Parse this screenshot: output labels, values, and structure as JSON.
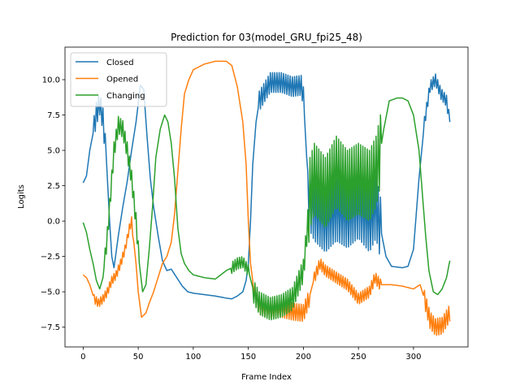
{
  "chart_data": {
    "type": "line",
    "title": "Prediction for 03(model_GRU_fpi25_48)",
    "xlabel": "Frame Index",
    "ylabel": "Logits",
    "xlim": [
      -16.5,
      349.5
    ],
    "ylim": [
      -8.9,
      12.3
    ],
    "xticks": [
      0,
      50,
      100,
      150,
      200,
      250,
      300
    ],
    "yticks": [
      -7.5,
      -5.0,
      -2.5,
      0.0,
      2.5,
      5.0,
      7.5,
      10.0
    ],
    "ytick_labels": [
      "−7.5",
      "−5.0",
      "−2.5",
      "0.0",
      "2.5",
      "5.0",
      "7.5",
      "10.0"
    ],
    "grid": false,
    "legend_position": "upper-left",
    "series": [
      {
        "name": "Closed",
        "color": "#1f77b4",
        "oscillation": [
          {
            "from": 10,
            "to": 20,
            "amp": 0.8
          },
          {
            "from": 160,
            "to": 200,
            "amp": 0.7
          },
          {
            "from": 205,
            "to": 270,
            "amp": 2.2
          },
          {
            "from": 310,
            "to": 332,
            "amp": 0.4
          }
        ],
        "points": [
          [
            0,
            2.7
          ],
          [
            3,
            3.2
          ],
          [
            6,
            5.0
          ],
          [
            9,
            6.2
          ],
          [
            12,
            7.6
          ],
          [
            15,
            8.3
          ],
          [
            18,
            7.2
          ],
          [
            21,
            4.5
          ],
          [
            24,
            0.0
          ],
          [
            26,
            -2.5
          ],
          [
            28,
            -3.3
          ],
          [
            32,
            -1.0
          ],
          [
            36,
            1.0
          ],
          [
            40,
            2.8
          ],
          [
            44,
            5.0
          ],
          [
            48,
            7.0
          ],
          [
            52,
            9.6
          ],
          [
            55,
            9.3
          ],
          [
            58,
            6.0
          ],
          [
            61,
            3.0
          ],
          [
            64,
            1.0
          ],
          [
            68,
            -1.0
          ],
          [
            72,
            -2.8
          ],
          [
            76,
            -3.5
          ],
          [
            80,
            -3.4
          ],
          [
            85,
            -4.0
          ],
          [
            90,
            -4.6
          ],
          [
            95,
            -5.0
          ],
          [
            100,
            -5.1
          ],
          [
            110,
            -5.2
          ],
          [
            120,
            -5.3
          ],
          [
            130,
            -5.45
          ],
          [
            135,
            -5.5
          ],
          [
            140,
            -5.3
          ],
          [
            145,
            -5.0
          ],
          [
            148,
            -4.2
          ],
          [
            150,
            -3.0
          ],
          [
            152,
            0.0
          ],
          [
            154,
            4.0
          ],
          [
            157,
            7.0
          ],
          [
            160,
            8.5
          ],
          [
            170,
            9.8
          ],
          [
            180,
            9.8
          ],
          [
            190,
            9.5
          ],
          [
            198,
            9.6
          ],
          [
            200,
            8.8
          ],
          [
            203,
            4.5
          ],
          [
            206,
            1.5
          ],
          [
            210,
            0.8
          ],
          [
            220,
            0.0
          ],
          [
            230,
            0.8
          ],
          [
            240,
            0.3
          ],
          [
            250,
            1.0
          ],
          [
            260,
            0.0
          ],
          [
            266,
            1.0
          ],
          [
            270,
            -0.5
          ],
          [
            275,
            -2.5
          ],
          [
            280,
            -3.2
          ],
          [
            290,
            -3.3
          ],
          [
            295,
            -3.2
          ],
          [
            300,
            -2.0
          ],
          [
            305,
            3.0
          ],
          [
            310,
            7.0
          ],
          [
            315,
            9.5
          ],
          [
            320,
            10.0
          ],
          [
            325,
            9.0
          ],
          [
            330,
            8.5
          ],
          [
            333,
            7.0
          ]
        ]
      },
      {
        "name": "Opened",
        "color": "#ff7f0e",
        "oscillation": [
          {
            "from": 10,
            "to": 45,
            "amp": 0.3
          },
          {
            "from": 155,
            "to": 205,
            "amp": 0.6
          },
          {
            "from": 210,
            "to": 270,
            "amp": 0.4
          },
          {
            "from": 310,
            "to": 333,
            "amp": 0.6
          }
        ],
        "points": [
          [
            0,
            -3.8
          ],
          [
            3,
            -4.0
          ],
          [
            6,
            -4.5
          ],
          [
            10,
            -5.5
          ],
          [
            14,
            -5.8
          ],
          [
            18,
            -5.5
          ],
          [
            22,
            -5.0
          ],
          [
            26,
            -4.2
          ],
          [
            30,
            -3.8
          ],
          [
            34,
            -3.0
          ],
          [
            38,
            -2.0
          ],
          [
            42,
            -0.5
          ],
          [
            44,
            0.0
          ],
          [
            46,
            -1.5
          ],
          [
            48,
            -3.0
          ],
          [
            50,
            -5.0
          ],
          [
            53,
            -6.8
          ],
          [
            57,
            -6.5
          ],
          [
            60,
            -5.8
          ],
          [
            64,
            -5.0
          ],
          [
            68,
            -4.0
          ],
          [
            72,
            -3.0
          ],
          [
            76,
            -2.5
          ],
          [
            80,
            -1.5
          ],
          [
            83,
            0.5
          ],
          [
            86,
            3.5
          ],
          [
            89,
            6.5
          ],
          [
            92,
            9.0
          ],
          [
            96,
            10.0
          ],
          [
            100,
            10.7
          ],
          [
            110,
            11.1
          ],
          [
            120,
            11.3
          ],
          [
            130,
            11.3
          ],
          [
            135,
            11.0
          ],
          [
            140,
            9.5
          ],
          [
            145,
            7.0
          ],
          [
            148,
            4.0
          ],
          [
            150,
            0.0
          ],
          [
            152,
            -3.0
          ],
          [
            155,
            -4.8
          ],
          [
            160,
            -6.0
          ],
          [
            170,
            -6.3
          ],
          [
            180,
            -6.2
          ],
          [
            190,
            -6.4
          ],
          [
            200,
            -6.5
          ],
          [
            205,
            -5.5
          ],
          [
            210,
            -4.0
          ],
          [
            215,
            -3.0
          ],
          [
            220,
            -3.5
          ],
          [
            230,
            -4.0
          ],
          [
            240,
            -4.5
          ],
          [
            250,
            -5.5
          ],
          [
            260,
            -5.0
          ],
          [
            265,
            -4.0
          ],
          [
            270,
            -4.5
          ],
          [
            280,
            -4.5
          ],
          [
            290,
            -4.6
          ],
          [
            300,
            -4.8
          ],
          [
            306,
            -4.5
          ],
          [
            310,
            -5.5
          ],
          [
            315,
            -7.0
          ],
          [
            320,
            -7.5
          ],
          [
            326,
            -7.4
          ],
          [
            333,
            -6.5
          ]
        ]
      },
      {
        "name": "Changing",
        "color": "#2ca02c",
        "oscillation": [
          {
            "from": 20,
            "to": 50,
            "amp": 0.6
          },
          {
            "from": 135,
            "to": 150,
            "amp": 0.4
          },
          {
            "from": 155,
            "to": 205,
            "amp": 0.8
          },
          {
            "from": 205,
            "to": 270,
            "amp": 2.5
          }
        ],
        "points": [
          [
            0,
            -0.1
          ],
          [
            3,
            -0.8
          ],
          [
            6,
            -2.0
          ],
          [
            9,
            -3.0
          ],
          [
            12,
            -4.2
          ],
          [
            15,
            -4.8
          ],
          [
            18,
            -4.0
          ],
          [
            22,
            -1.0
          ],
          [
            25,
            2.0
          ],
          [
            28,
            5.0
          ],
          [
            32,
            6.8
          ],
          [
            36,
            6.5
          ],
          [
            40,
            5.0
          ],
          [
            44,
            3.0
          ],
          [
            48,
            0.0
          ],
          [
            51,
            -3.0
          ],
          [
            54,
            -5.0
          ],
          [
            57,
            -4.5
          ],
          [
            60,
            -2.0
          ],
          [
            63,
            1.0
          ],
          [
            66,
            4.5
          ],
          [
            70,
            6.5
          ],
          [
            74,
            7.5
          ],
          [
            77,
            7.0
          ],
          [
            80,
            5.5
          ],
          [
            83,
            3.0
          ],
          [
            86,
            -0.5
          ],
          [
            89,
            -2.3
          ],
          [
            92,
            -3.0
          ],
          [
            96,
            -3.5
          ],
          [
            100,
            -3.8
          ],
          [
            110,
            -4.0
          ],
          [
            120,
            -4.1
          ],
          [
            125,
            -3.8
          ],
          [
            130,
            -3.5
          ],
          [
            135,
            -3.3
          ],
          [
            140,
            -3.0
          ],
          [
            145,
            -2.9
          ],
          [
            150,
            -3.5
          ],
          [
            155,
            -5.0
          ],
          [
            160,
            -5.8
          ],
          [
            170,
            -6.2
          ],
          [
            180,
            -6.0
          ],
          [
            190,
            -5.5
          ],
          [
            195,
            -4.5
          ],
          [
            200,
            -3.5
          ],
          [
            203,
            -1.0
          ],
          [
            206,
            2.0
          ],
          [
            210,
            3.0
          ],
          [
            220,
            2.0
          ],
          [
            230,
            3.5
          ],
          [
            240,
            2.5
          ],
          [
            250,
            3.0
          ],
          [
            260,
            2.5
          ],
          [
            266,
            3.5
          ],
          [
            270,
            5.0
          ],
          [
            273,
            6.5
          ],
          [
            278,
            8.5
          ],
          [
            285,
            8.7
          ],
          [
            290,
            8.7
          ],
          [
            295,
            8.5
          ],
          [
            300,
            7.5
          ],
          [
            305,
            5.0
          ],
          [
            308,
            2.0
          ],
          [
            311,
            -1.0
          ],
          [
            314,
            -3.5
          ],
          [
            318,
            -5.0
          ],
          [
            322,
            -5.2
          ],
          [
            326,
            -4.8
          ],
          [
            330,
            -4.0
          ],
          [
            333,
            -2.8
          ]
        ]
      }
    ]
  }
}
